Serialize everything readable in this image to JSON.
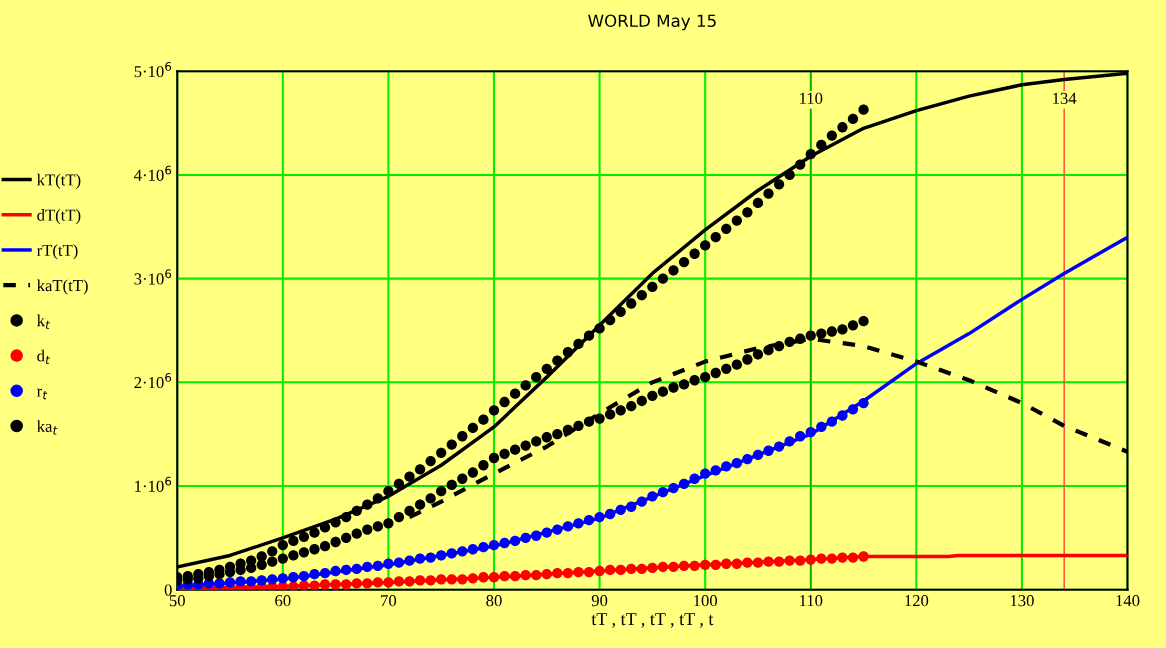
{
  "chart_data": {
    "type": "line",
    "title": "WORLD May 15",
    "xlabel": "tT , tT , tT , tT , t",
    "xlim": [
      50,
      140
    ],
    "xticks": [
      50,
      60,
      70,
      80,
      90,
      100,
      110,
      120,
      130,
      140
    ],
    "ylim": [
      0,
      5000000
    ],
    "yticks": [
      0,
      {
        "value": 1000000,
        "label": "1·10$^{6}$"
      },
      {
        "value": 2000000,
        "label": "2·10$^{6}$"
      },
      {
        "value": 3000000,
        "label": "3·10$^{6}$"
      },
      {
        "value": 4000000,
        "label": "4·10$^{6}$"
      },
      {
        "value": 5000000,
        "label": "5·10$^{6}$"
      }
    ],
    "grid": true,
    "legend": "left",
    "ref_lines": [
      {
        "axis": "x",
        "value": 110,
        "label": "110",
        "color": "#00b000"
      },
      {
        "axis": "x",
        "value": 134,
        "label": "134",
        "color": "#ff4040"
      }
    ],
    "series": [
      {
        "name": "kT(tT)",
        "color": "#000000",
        "line_style": "solid",
        "x": [
          50,
          55,
          60,
          65,
          70,
          75,
          80,
          85,
          90,
          95,
          100,
          105,
          110,
          115,
          120,
          125,
          130,
          134,
          140
        ],
        "values": [
          220000,
          330000,
          500000,
          680000,
          900000,
          1200000,
          1570000,
          2050000,
          2550000,
          3050000,
          3470000,
          3850000,
          4180000,
          4450000,
          4620000,
          4760000,
          4870000,
          4920000,
          4980000
        ]
      },
      {
        "name": "dT(tT)",
        "color": "#ff0000",
        "line_style": "solid",
        "x": [
          50,
          60,
          70,
          80,
          90,
          100,
          110,
          115,
          123,
          124,
          140
        ],
        "values": [
          10000,
          30000,
          70000,
          120000,
          180000,
          240000,
          290000,
          320000,
          320000,
          330000,
          330000
        ]
      },
      {
        "name": "rT(tT)",
        "color": "#0000ff",
        "line_style": "solid",
        "x": [
          50,
          60,
          70,
          80,
          90,
          100,
          110,
          115,
          120,
          125,
          130,
          134,
          140
        ],
        "values": [
          30000,
          100000,
          240000,
          420000,
          690000,
          1100000,
          1500000,
          1820000,
          2180000,
          2470000,
          2800000,
          3050000,
          3400000
        ]
      },
      {
        "name": "kaT(tT)",
        "color": "#000000",
        "line_style": "dashed",
        "x": [
          72,
          75,
          80,
          85,
          90,
          95,
          100,
          105,
          110,
          115,
          120,
          125,
          130,
          134,
          140
        ],
        "values": [
          700000,
          850000,
          1120000,
          1380000,
          1700000,
          2000000,
          2200000,
          2330000,
          2420000,
          2350000,
          2200000,
          2020000,
          1800000,
          1580000,
          1330000
        ]
      },
      {
        "name": "k$_{t}$",
        "type": "scatter",
        "marker": "circle",
        "color": "#000000",
        "x": [
          50,
          51,
          52,
          53,
          54,
          55,
          56,
          57,
          58,
          59,
          60,
          61,
          62,
          63,
          64,
          65,
          66,
          67,
          68,
          69,
          70,
          71,
          72,
          73,
          74,
          75,
          76,
          77,
          78,
          79,
          80,
          81,
          82,
          83,
          84,
          85,
          86,
          87,
          88,
          89,
          90,
          91,
          92,
          93,
          94,
          95,
          96,
          97,
          98,
          99,
          100,
          101,
          102,
          103,
          104,
          105,
          106,
          107,
          108,
          109,
          110,
          111,
          112,
          113,
          114,
          115
        ],
        "values": [
          120000,
          130000,
          150000,
          170000,
          190000,
          220000,
          250000,
          280000,
          320000,
          370000,
          430000,
          470000,
          510000,
          550000,
          600000,
          650000,
          700000,
          760000,
          820000,
          880000,
          950000,
          1020000,
          1090000,
          1160000,
          1240000,
          1320000,
          1400000,
          1480000,
          1560000,
          1640000,
          1730000,
          1810000,
          1890000,
          1970000,
          2050000,
          2130000,
          2210000,
          2290000,
          2370000,
          2450000,
          2520000,
          2600000,
          2680000,
          2760000,
          2840000,
          2920000,
          3000000,
          3080000,
          3160000,
          3240000,
          3320000,
          3400000,
          3480000,
          3560000,
          3640000,
          3730000,
          3820000,
          3910000,
          4000000,
          4100000,
          4200000,
          4290000,
          4380000,
          4460000,
          4540000,
          4630000
        ]
      },
      {
        "name": "d$_{t}$",
        "type": "scatter",
        "marker": "circle",
        "color": "#ff0000",
        "x": [
          50,
          51,
          52,
          53,
          54,
          55,
          56,
          57,
          58,
          59,
          60,
          61,
          62,
          63,
          64,
          65,
          66,
          67,
          68,
          69,
          70,
          71,
          72,
          73,
          74,
          75,
          76,
          77,
          78,
          79,
          80,
          81,
          82,
          83,
          84,
          85,
          86,
          87,
          88,
          89,
          90,
          91,
          92,
          93,
          94,
          95,
          96,
          97,
          98,
          99,
          100,
          101,
          102,
          103,
          104,
          105,
          106,
          107,
          108,
          109,
          110,
          111,
          112,
          113,
          114,
          115
        ],
        "values": [
          10000,
          10000,
          10000,
          20000,
          20000,
          20000,
          20000,
          20000,
          30000,
          30000,
          30000,
          30000,
          40000,
          40000,
          50000,
          50000,
          50000,
          60000,
          60000,
          70000,
          70000,
          80000,
          80000,
          90000,
          90000,
          100000,
          100000,
          100000,
          110000,
          120000,
          120000,
          130000,
          130000,
          140000,
          140000,
          150000,
          160000,
          160000,
          170000,
          170000,
          180000,
          190000,
          190000,
          200000,
          200000,
          210000,
          220000,
          220000,
          230000,
          230000,
          240000,
          240000,
          250000,
          250000,
          260000,
          260000,
          270000,
          270000,
          280000,
          280000,
          290000,
          300000,
          300000,
          310000,
          310000,
          320000
        ]
      },
      {
        "name": "r$_{t}$",
        "type": "scatter",
        "marker": "circle",
        "color": "#0000ff",
        "x": [
          50,
          51,
          52,
          53,
          54,
          55,
          56,
          57,
          58,
          59,
          60,
          61,
          62,
          63,
          64,
          65,
          66,
          67,
          68,
          69,
          70,
          71,
          72,
          73,
          74,
          75,
          76,
          77,
          78,
          79,
          80,
          81,
          82,
          83,
          84,
          85,
          86,
          87,
          88,
          89,
          90,
          91,
          92,
          93,
          94,
          95,
          96,
          97,
          98,
          99,
          100,
          101,
          102,
          103,
          104,
          105,
          106,
          107,
          108,
          109,
          110,
          111,
          112,
          113,
          114,
          115
        ],
        "values": [
          40000,
          50000,
          50000,
          60000,
          60000,
          70000,
          80000,
          80000,
          90000,
          100000,
          110000,
          120000,
          130000,
          150000,
          160000,
          180000,
          190000,
          200000,
          220000,
          230000,
          250000,
          260000,
          280000,
          300000,
          310000,
          330000,
          350000,
          370000,
          390000,
          410000,
          430000,
          450000,
          470000,
          500000,
          520000,
          550000,
          580000,
          610000,
          640000,
          670000,
          700000,
          730000,
          770000,
          800000,
          850000,
          900000,
          940000,
          980000,
          1020000,
          1070000,
          1120000,
          1150000,
          1190000,
          1220000,
          1260000,
          1300000,
          1340000,
          1380000,
          1430000,
          1480000,
          1520000,
          1570000,
          1620000,
          1680000,
          1740000,
          1800000
        ]
      },
      {
        "name": "ka$_{t}$",
        "type": "scatter",
        "marker": "circle",
        "color": "#000000",
        "x": [
          50,
          51,
          52,
          53,
          54,
          55,
          56,
          57,
          58,
          59,
          60,
          61,
          62,
          63,
          64,
          65,
          66,
          67,
          68,
          69,
          70,
          71,
          72,
          73,
          74,
          75,
          76,
          77,
          78,
          79,
          80,
          81,
          82,
          83,
          84,
          85,
          86,
          87,
          88,
          89,
          90,
          91,
          92,
          93,
          94,
          95,
          96,
          97,
          98,
          99,
          100,
          101,
          102,
          103,
          104,
          105,
          106,
          107,
          108,
          109,
          110,
          111,
          112,
          113,
          114,
          115
        ],
        "values": [
          90000,
          100000,
          110000,
          130000,
          150000,
          170000,
          190000,
          210000,
          240000,
          270000,
          300000,
          330000,
          360000,
          390000,
          420000,
          460000,
          500000,
          540000,
          580000,
          610000,
          640000,
          700000,
          760000,
          820000,
          880000,
          950000,
          1010000,
          1070000,
          1130000,
          1200000,
          1270000,
          1310000,
          1350000,
          1390000,
          1430000,
          1470000,
          1500000,
          1540000,
          1580000,
          1620000,
          1650000,
          1690000,
          1730000,
          1770000,
          1820000,
          1870000,
          1910000,
          1950000,
          1980000,
          2020000,
          2050000,
          2090000,
          2130000,
          2170000,
          2220000,
          2270000,
          2310000,
          2350000,
          2390000,
          2420000,
          2450000,
          2470000,
          2490000,
          2510000,
          2550000,
          2590000
        ]
      }
    ]
  }
}
